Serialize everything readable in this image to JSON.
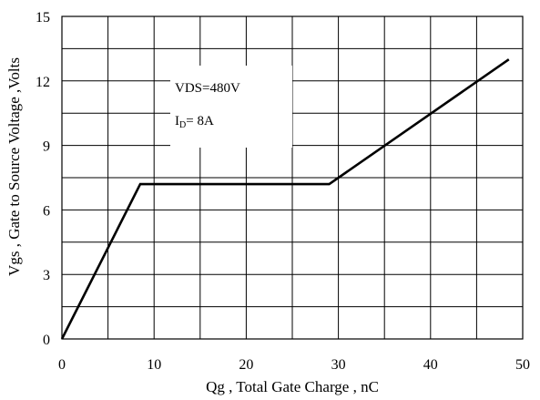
{
  "chart_data": {
    "type": "line",
    "title": "",
    "xlabel": "Qg , Total Gate Charge , nC",
    "ylabel": "Vgs , Gate to Source Voltage ,Volts",
    "xlim": [
      0,
      50
    ],
    "ylim": [
      0,
      15
    ],
    "x_ticks": [
      0,
      10,
      20,
      30,
      40,
      50
    ],
    "y_ticks": [
      0,
      3,
      6,
      9,
      12,
      15
    ],
    "grid": true,
    "grid_x_step": 5,
    "grid_y_step": 1.5,
    "series": [
      {
        "x": [
          0,
          8.5,
          29,
          48.5
        ],
        "y": [
          0,
          7.2,
          7.2,
          13.0
        ],
        "color": "#000000"
      }
    ],
    "annotations": {
      "vds": "VDS=480V",
      "id_main": "I",
      "id_sub": "D",
      "id_rest": "= 8A"
    }
  }
}
